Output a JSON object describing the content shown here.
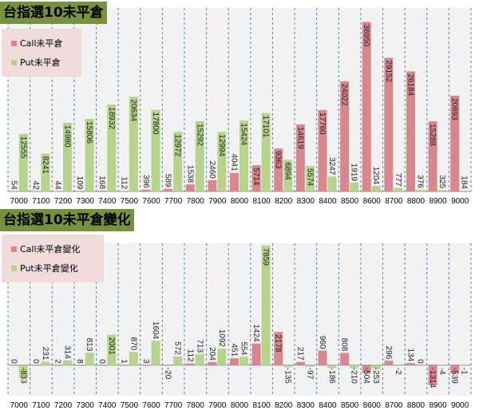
{
  "colors": {
    "call": "#d9868d",
    "put": "#b7d48c",
    "title_bg": "#76923c",
    "legend_bg": "#f2dcdb",
    "plot_bg": "#f2f2f2",
    "grid": "#5b7fa8"
  },
  "chart_data": [
    {
      "type": "bar",
      "title": "台指選10未平倉",
      "categories": [
        "7000",
        "7100",
        "7200",
        "7300",
        "7400",
        "7500",
        "7600",
        "7700",
        "7800",
        "7900",
        "8000",
        "8100",
        "8200",
        "8300",
        "8400",
        "8500",
        "8600",
        "8700",
        "8800",
        "8900",
        "9000"
      ],
      "series": [
        {
          "name": "Call未平倉",
          "values": [
            54,
            42,
            44,
            109,
            168,
            112,
            396,
            589,
            1538,
            2460,
            4041,
            5714,
            9363,
            14619,
            17760,
            24022,
            36950,
            29152,
            26184,
            15288,
            20893
          ]
        },
        {
          "name": "Put未平倉",
          "values": [
            12555,
            8241,
            14980,
            15806,
            18932,
            20634,
            17800,
            12972,
            15292,
            12994,
            15424,
            17101,
            6894,
            5574,
            3247,
            1919,
            1204,
            777,
            376,
            325,
            184
          ]
        }
      ],
      "ylim": [
        0,
        40000
      ],
      "legend": "top-left",
      "grid": "vertical dashed"
    },
    {
      "type": "bar",
      "title": "台指選10未平倉變化",
      "categories": [
        "7000",
        "7100",
        "7200",
        "7300",
        "7400",
        "7500",
        "7600",
        "7700",
        "7800",
        "7900",
        "8000",
        "8100",
        "8200",
        "8300",
        "8400",
        "8500",
        "8600",
        "8700",
        "8800",
        "8900",
        "9000"
      ],
      "series": [
        {
          "name": "Call未平倉變化",
          "values": [
            0,
            0,
            2,
            8,
            0,
            1,
            3,
            -20,
            112,
            204,
            451,
            1424,
            2178,
            217,
            960,
            808,
            -504,
            296,
            134,
            -1314,
            -539
          ]
        },
        {
          "name": "Put未平倉變化",
          "values": [
            -833,
            231,
            314,
            813,
            2001,
            870,
            1604,
            572,
            713,
            1092,
            554,
            7859,
            -135,
            -97,
            -186,
            -210,
            -253,
            -2,
            0,
            -4,
            -1
          ]
        }
      ],
      "ylim": [
        -2000,
        8000
      ],
      "legend": "top-left",
      "grid": "vertical dashed"
    }
  ]
}
